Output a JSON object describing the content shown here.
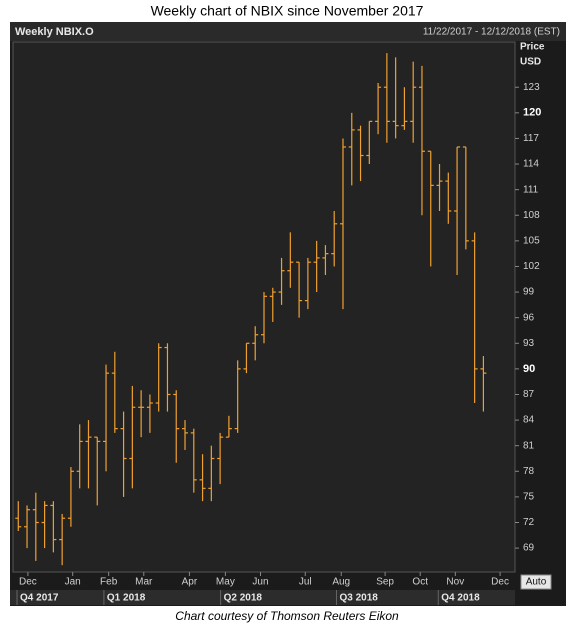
{
  "chart_data": {
    "type": "ohlc",
    "title": "Weekly chart of NBIX since November 2017",
    "header_left": "Weekly NBIX.O",
    "header_right": "11/22/2017 - 12/12/2018 (EST)",
    "y_label": "Price",
    "y_unit": "USD",
    "auto_button": "Auto",
    "footer": "Chart courtesy of Thomson Reuters Eikon",
    "color": "#f0a030",
    "categories": [
      null,
      null,
      null,
      null,
      null,
      null,
      null,
      null,
      null,
      null,
      null,
      null,
      null,
      null,
      null,
      null,
      null,
      null,
      null,
      null,
      null,
      null,
      null,
      null,
      null,
      null,
      null,
      null,
      null,
      null,
      null,
      null,
      null,
      null,
      null,
      null,
      null,
      null,
      null,
      null,
      null,
      null,
      null,
      null,
      null,
      null,
      null,
      null,
      null,
      null,
      null,
      null,
      null,
      null
    ],
    "open": [
      72.5,
      71.5,
      73.5,
      72,
      74,
      70,
      72.5,
      78,
      81.5,
      82,
      81.5,
      89.5,
      83,
      79.5,
      85.5,
      85.5,
      86,
      92.5,
      87,
      83,
      82.5,
      77,
      76,
      79.5,
      82,
      83,
      90,
      93,
      94,
      98.5,
      99,
      101.5,
      102.5,
      98,
      102.5,
      103,
      103.5,
      107,
      116,
      118,
      115,
      119,
      123,
      119,
      118.5,
      119,
      123,
      115.5,
      111.5,
      112,
      108.5,
      116,
      105,
      90
    ],
    "high": [
      74.5,
      74,
      75.5,
      74.5,
      74.5,
      73,
      78.5,
      83.5,
      84,
      82,
      90.5,
      92,
      85,
      88,
      87.5,
      87,
      93,
      93,
      87.5,
      84,
      83,
      80,
      81,
      82.5,
      84.5,
      91,
      93,
      95,
      99,
      99.5,
      103,
      106,
      102.5,
      103,
      105,
      104.5,
      108.5,
      117,
      120,
      118.5,
      119,
      123.5,
      127,
      126.5,
      123,
      126,
      125.5,
      115.5,
      114,
      113,
      116,
      116,
      106,
      91.5
    ],
    "low": [
      71,
      69,
      67.5,
      69,
      68.5,
      67,
      71.5,
      76,
      76,
      74,
      78,
      82.5,
      75,
      76,
      82,
      82.5,
      85,
      85,
      79,
      80.5,
      75.5,
      74.5,
      74.5,
      76.5,
      82,
      82.5,
      89.5,
      91,
      93,
      95.5,
      97.5,
      99.5,
      96,
      97,
      99,
      101,
      102,
      97,
      111.5,
      112,
      114,
      117.5,
      116.5,
      117,
      118,
      116.5,
      108,
      102,
      108.5,
      107,
      101,
      104,
      86,
      85
    ],
    "close": [
      71.5,
      73.5,
      72,
      74,
      70,
      72.5,
      78,
      81.5,
      82,
      81.5,
      89.5,
      83,
      79.5,
      85.5,
      85.5,
      86,
      92.5,
      87,
      83,
      82.5,
      77,
      76,
      79.5,
      82,
      83,
      90,
      93,
      94,
      98.5,
      99,
      101.5,
      102.5,
      98,
      102.5,
      103,
      103.5,
      107,
      116,
      118,
      115,
      119,
      123,
      119,
      118.5,
      119,
      123,
      115.5,
      111.5,
      112,
      108.5,
      116,
      105,
      90,
      89.5
    ],
    "ylim": [
      66.2,
      128.3
    ],
    "yticks": [
      69,
      72,
      75,
      78,
      81,
      84,
      87,
      90,
      93,
      96,
      99,
      102,
      105,
      108,
      111,
      114,
      117,
      120,
      123
    ],
    "bold_yticks": [
      90,
      120
    ],
    "xlim": [
      -0.6,
      56.6
    ],
    "xticks": [
      {
        "value": 1.1,
        "label": "Dec"
      },
      {
        "value": 6.2,
        "label": "Jan"
      },
      {
        "value": 10.3,
        "label": "Feb"
      },
      {
        "value": 14.3,
        "label": "Mar"
      },
      {
        "value": 19.5,
        "label": "Apr"
      },
      {
        "value": 23.6,
        "label": "May"
      },
      {
        "value": 27.6,
        "label": "Jun"
      },
      {
        "value": 32.7,
        "label": "Jul"
      },
      {
        "value": 36.8,
        "label": "Aug"
      },
      {
        "value": 41.8,
        "label": "Sep"
      },
      {
        "value": 45.8,
        "label": "Oct"
      },
      {
        "value": 49.8,
        "label": "Nov"
      },
      {
        "value": 54.9,
        "label": "Dec"
      }
    ],
    "quarters": [
      {
        "value": 0.2,
        "label": "Q4 2017"
      },
      {
        "value": 10.1,
        "label": "Q1 2018"
      },
      {
        "value": 23.4,
        "label": "Q2 2018"
      },
      {
        "value": 36.6,
        "label": "Q3 2018"
      },
      {
        "value": 48.2,
        "label": "Q4 2018"
      }
    ]
  }
}
